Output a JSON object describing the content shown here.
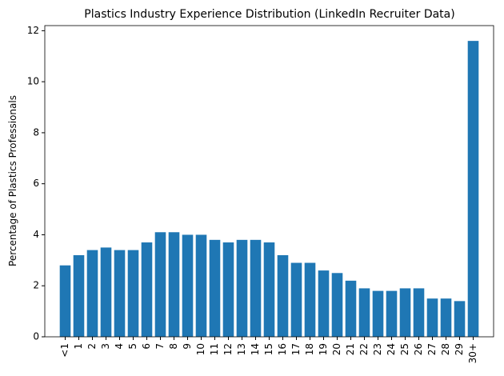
{
  "chart_data": {
    "type": "bar",
    "title": "Plastics Industry Experience Distribution (LinkedIn Recruiter Data)",
    "y_label": "Percentage of Plastics Professionals",
    "categories": [
      "<1",
      "1",
      "2",
      "3",
      "4",
      "5",
      "6",
      "7",
      "8",
      "9",
      "10",
      "11",
      "12",
      "13",
      "14",
      "15",
      "16",
      "17",
      "18",
      "19",
      "20",
      "21",
      "22",
      "23",
      "24",
      "25",
      "26",
      "27",
      "28",
      "29",
      "30+"
    ],
    "values": [
      2.8,
      3.2,
      3.4,
      3.5,
      3.4,
      3.4,
      3.7,
      4.1,
      4.1,
      4.0,
      4.0,
      3.8,
      3.7,
      3.8,
      3.8,
      3.7,
      3.2,
      2.9,
      2.9,
      2.6,
      2.5,
      2.2,
      1.9,
      1.8,
      1.8,
      1.9,
      1.9,
      1.5,
      1.5,
      1.4,
      11.6
    ],
    "color": "#1f77b4",
    "ylim": [
      0,
      12.2
    ],
    "yticks": [
      0,
      2,
      4,
      6,
      8,
      10,
      12
    ],
    "grid": false
  }
}
